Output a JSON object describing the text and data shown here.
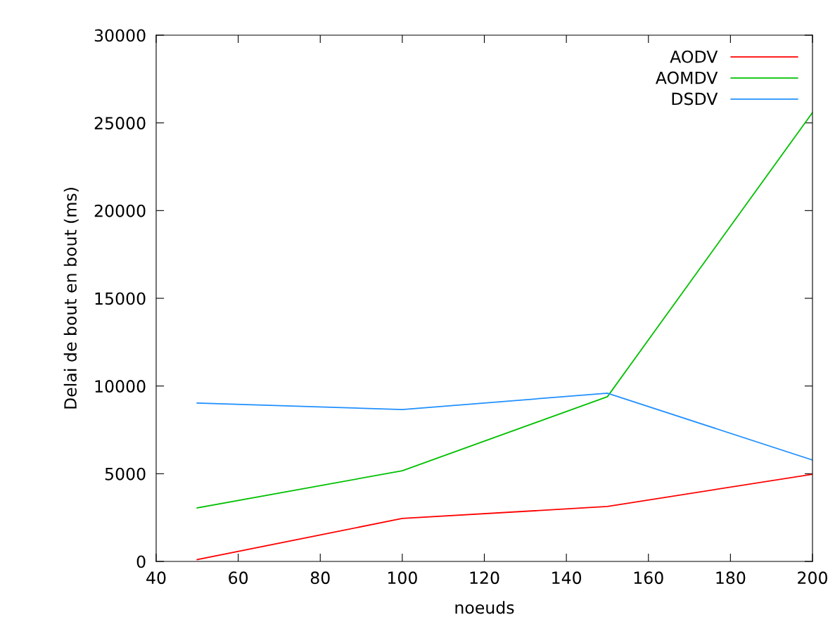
{
  "chart_data": {
    "type": "line",
    "xlabel": "noeuds",
    "ylabel": "Delai de bout en bout (ms)",
    "x": [
      50,
      100,
      150,
      200
    ],
    "series": [
      {
        "name": "AODV",
        "color": "#ff0000",
        "values": [
          100,
          2450,
          3130,
          4970
        ]
      },
      {
        "name": "AOMDV",
        "color": "#00c000",
        "values": [
          3050,
          5170,
          9390,
          25590
        ]
      },
      {
        "name": "DSDV",
        "color": "#2090ff",
        "values": [
          9030,
          8660,
          9590,
          5780
        ]
      }
    ],
    "xlim": [
      40,
      200
    ],
    "xticks": [
      40,
      60,
      80,
      100,
      120,
      140,
      160,
      180,
      200
    ],
    "ylim": [
      0,
      30000
    ],
    "yticks": [
      0,
      5000,
      10000,
      15000,
      20000,
      25000,
      30000
    ],
    "grid": false,
    "legend": "top right",
    "marker": "none",
    "line_style": "solid"
  }
}
